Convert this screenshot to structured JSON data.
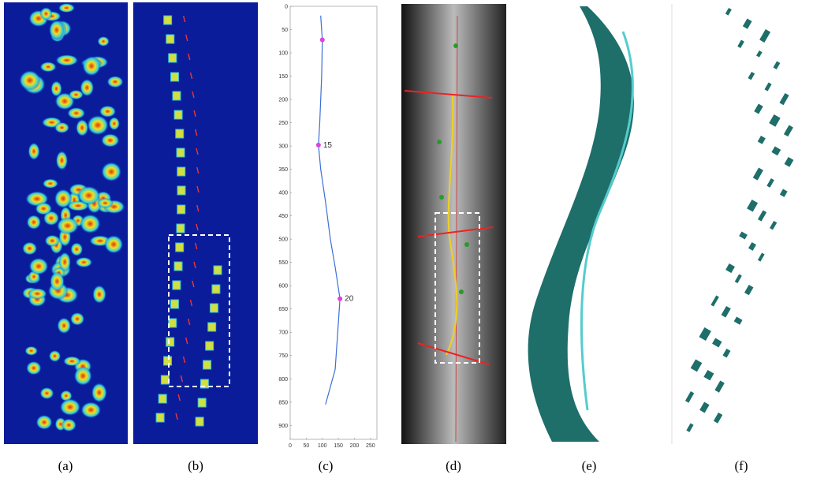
{
  "panels": [
    {
      "caption": "(a)"
    },
    {
      "caption": "(b)"
    },
    {
      "caption": "(c)"
    },
    {
      "caption": "(d)"
    },
    {
      "caption": "(e)"
    },
    {
      "caption": "(f)"
    }
  ],
  "chart_data": {
    "type": "line",
    "y_inverted": true,
    "xlim": [
      0,
      270
    ],
    "ylim": [
      0,
      930
    ],
    "xticks": [
      0,
      50,
      100,
      150,
      200,
      250
    ],
    "yticks": [
      0,
      50,
      100,
      150,
      200,
      250,
      300,
      350,
      400,
      450,
      500,
      550,
      600,
      650,
      700,
      750,
      800,
      850,
      900
    ],
    "series": [
      {
        "color": "#3a6fd8",
        "x": [
          95,
          100,
          98,
          92,
          88,
          95,
          110,
          125,
          140,
          155,
          148,
          140,
          110
        ],
        "values": [
          20,
          72,
          150,
          250,
          298,
          350,
          420,
          500,
          560,
          628,
          700,
          780,
          855
        ]
      },
      {
        "color": "#e040e0",
        "markers": true,
        "x": [
          100,
          88,
          155
        ],
        "values": [
          72,
          298,
          628
        ]
      }
    ],
    "annotations": [
      {
        "text": "15",
        "x": 88,
        "y": 298
      },
      {
        "text": "20",
        "x": 155,
        "y": 628
      }
    ]
  }
}
